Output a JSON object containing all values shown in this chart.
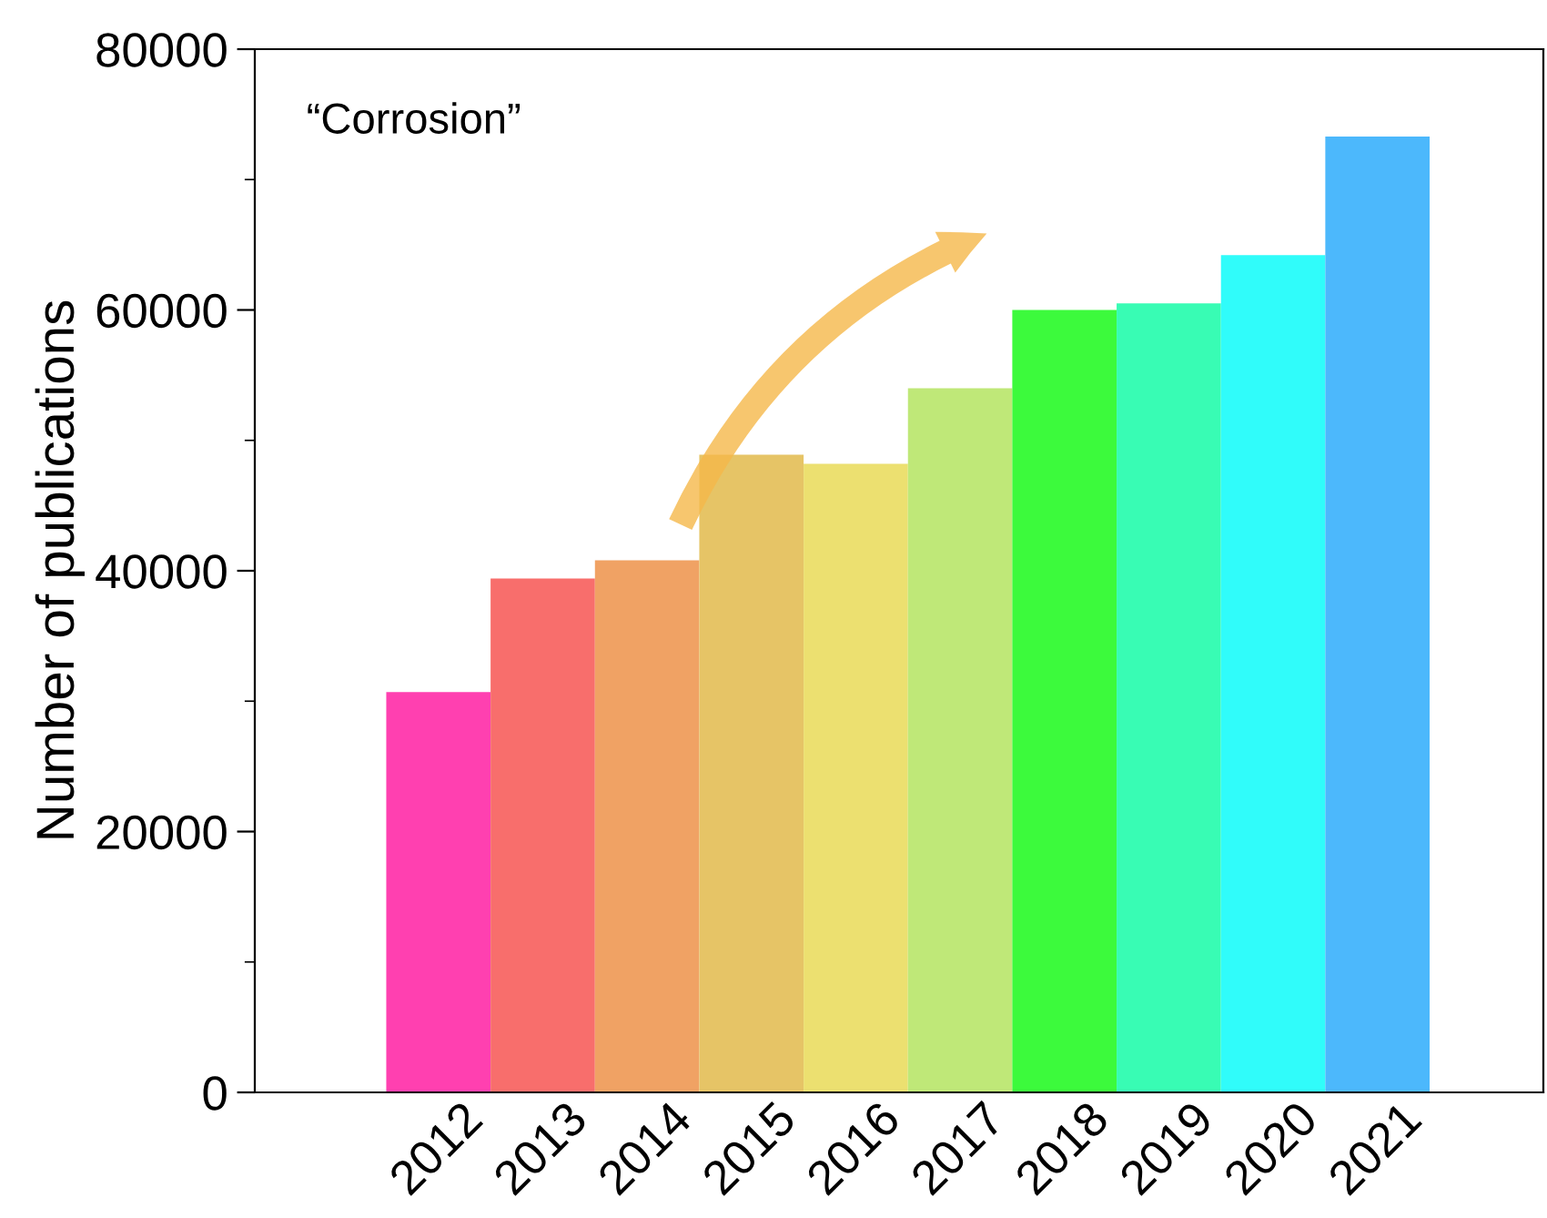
{
  "chart_data": {
    "type": "bar",
    "ylabel": "Number of publications",
    "annotations": [
      "“Corrosion”"
    ],
    "categories": [
      "2012",
      "2013",
      "2014",
      "2015",
      "2016",
      "2017",
      "2018",
      "2019",
      "2020",
      "2021"
    ],
    "values": [
      30700,
      39400,
      40800,
      48900,
      48200,
      54000,
      60000,
      60500,
      64200,
      73300
    ],
    "colors": [
      "#ff40b0",
      "#f86e6c",
      "#f0a264",
      "#e6c466",
      "#ece070",
      "#bfe878",
      "#3cfa3c",
      "#38fcb4",
      "#30fcfa",
      "#4cb8fc"
    ],
    "ylim": [
      0,
      80000
    ],
    "yticks": [
      0,
      20000,
      40000,
      60000,
      80000
    ],
    "grid": false,
    "legend": false
  }
}
